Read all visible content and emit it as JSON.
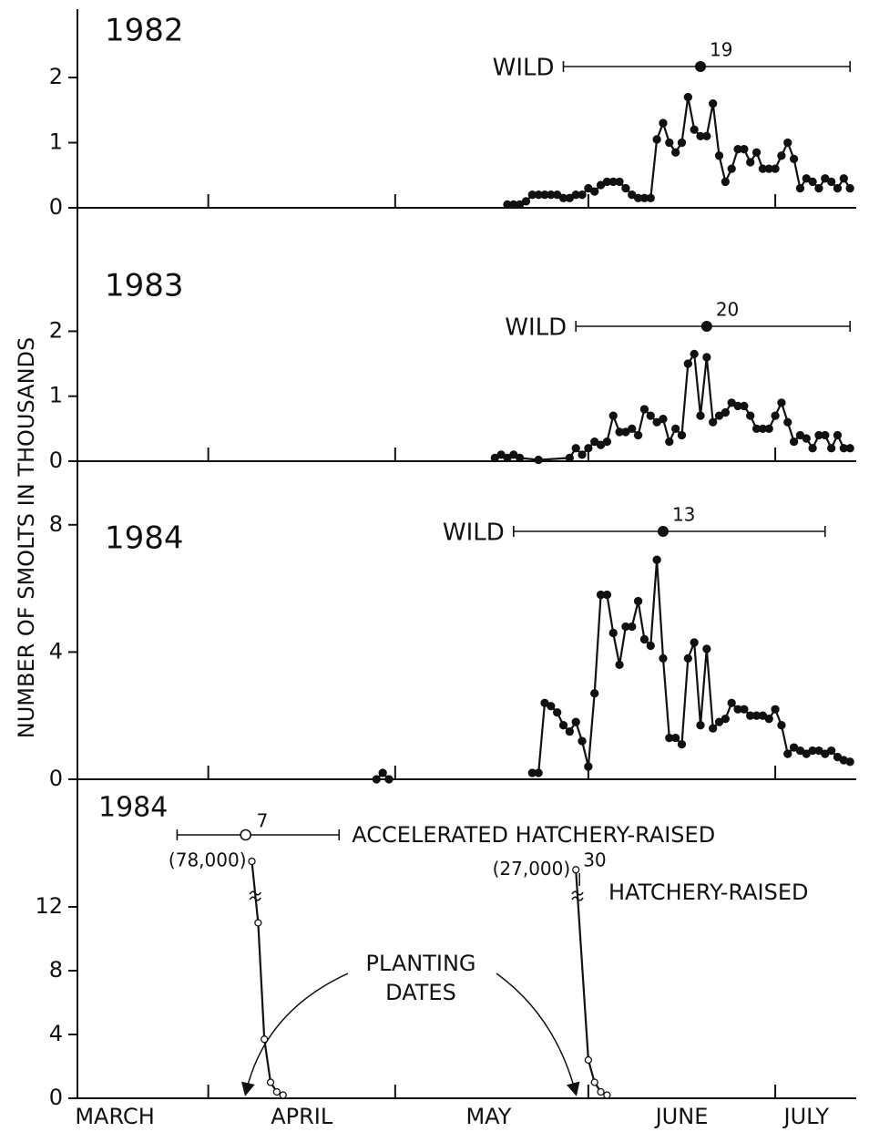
{
  "ylabel": "NUMBER OF SMOLTS IN THOUSANDS",
  "chart_data": [
    {
      "type": "line",
      "title": "1982",
      "xlim": [
        10,
        135
      ],
      "xticks": [
        31,
        61,
        92,
        122
      ],
      "ylim": [
        0,
        3.05
      ],
      "yticks": [
        0,
        1,
        2
      ],
      "series": [
        {
          "name": "WILD",
          "color": "#111111",
          "marker": "filled",
          "mean": 110,
          "range": [
            88,
            134
          ],
          "annotation": "19",
          "x": [
            79,
            80,
            81,
            82,
            83,
            84,
            85,
            86,
            87,
            88,
            89,
            90,
            91,
            92,
            93,
            94,
            95,
            96,
            97,
            98,
            99,
            100,
            101,
            102,
            103,
            104,
            105,
            106,
            107,
            108,
            109,
            110,
            111,
            112,
            113,
            114,
            115,
            116,
            117,
            118,
            119,
            120,
            121,
            122,
            123,
            124,
            125,
            126,
            127,
            128,
            129,
            130,
            131,
            132,
            133,
            134
          ],
          "values": [
            0.05,
            0.05,
            0.05,
            0.1,
            0.2,
            0.2,
            0.2,
            0.2,
            0.2,
            0.15,
            0.15,
            0.2,
            0.2,
            0.3,
            0.25,
            0.35,
            0.4,
            0.4,
            0.4,
            0.3,
            0.2,
            0.15,
            0.15,
            0.15,
            1.05,
            1.3,
            1.0,
            0.85,
            1.0,
            1.7,
            1.2,
            1.1,
            1.1,
            1.6,
            0.8,
            0.4,
            0.6,
            0.9,
            0.9,
            0.7,
            0.85,
            0.6,
            0.6,
            0.6,
            0.8,
            1.0,
            0.75,
            0.3,
            0.45,
            0.4,
            0.3,
            0.45,
            0.4,
            0.3,
            0.45,
            0.3
          ]
        }
      ]
    },
    {
      "type": "line",
      "title": "1983",
      "xlim": [
        10,
        135
      ],
      "xticks": [
        31,
        61,
        92,
        122
      ],
      "ylim": [
        0,
        3.9
      ],
      "yticks": [
        0,
        1,
        2
      ],
      "series": [
        {
          "name": "WILD",
          "color": "#111111",
          "marker": "filled",
          "mean": 111,
          "range": [
            90,
            134
          ],
          "annotation": "20",
          "x": [
            77,
            78,
            79,
            80,
            81,
            84,
            89,
            90,
            91,
            92,
            93,
            94,
            95,
            96,
            97,
            98,
            99,
            100,
            101,
            102,
            103,
            104,
            105,
            106,
            107,
            108,
            109,
            110,
            111,
            112,
            113,
            114,
            115,
            116,
            117,
            118,
            119,
            120,
            121,
            122,
            123,
            124,
            125,
            126,
            127,
            128,
            129,
            130,
            131,
            132,
            133,
            134
          ],
          "values": [
            0.05,
            0.1,
            0.05,
            0.1,
            0.05,
            0.02,
            0.05,
            0.2,
            0.1,
            0.2,
            0.3,
            0.25,
            0.3,
            0.7,
            0.45,
            0.45,
            0.5,
            0.4,
            0.8,
            0.7,
            0.6,
            0.65,
            0.3,
            0.5,
            0.4,
            1.5,
            1.65,
            0.7,
            1.6,
            0.6,
            0.7,
            0.75,
            0.9,
            0.85,
            0.85,
            0.7,
            0.5,
            0.5,
            0.5,
            0.7,
            0.9,
            0.6,
            0.3,
            0.4,
            0.35,
            0.2,
            0.4,
            0.4,
            0.2,
            0.4,
            0.2,
            0.2
          ]
        }
      ]
    },
    {
      "type": "line",
      "title": "1984",
      "xlim": [
        10,
        135
      ],
      "xticks": [
        31,
        61,
        92,
        122
      ],
      "ylim": [
        0,
        10
      ],
      "yticks": [
        0,
        4,
        8
      ],
      "series": [
        {
          "name": "WILD",
          "color": "#111111",
          "marker": "filled",
          "mean": 104,
          "range": [
            80,
            130
          ],
          "annotation": "13",
          "x": [
            58,
            59,
            60,
            61,
            83,
            84,
            85,
            86,
            87,
            88,
            89,
            90,
            91,
            92,
            93,
            94,
            95,
            96,
            97,
            98,
            99,
            100,
            101,
            102,
            103,
            104,
            105,
            106,
            107,
            108,
            109,
            110,
            111,
            112,
            113,
            114,
            115,
            116,
            117,
            118,
            119,
            120,
            121,
            122,
            123,
            124,
            125,
            126,
            127,
            128,
            129,
            130,
            131,
            132,
            133,
            134
          ],
          "values": [
            0,
            0.2,
            0,
            null,
            0.2,
            0.2,
            2.4,
            2.3,
            2.1,
            1.7,
            1.5,
            1.8,
            1.2,
            0.4,
            2.7,
            5.8,
            5.8,
            4.6,
            3.6,
            4.8,
            4.8,
            5.6,
            4.4,
            4.2,
            6.9,
            3.8,
            1.3,
            1.3,
            1.1,
            3.8,
            4.3,
            1.7,
            4.1,
            1.6,
            1.8,
            1.9,
            2.4,
            2.2,
            2.2,
            2.0,
            2.0,
            2.0,
            1.9,
            2.2,
            1.7,
            0.8,
            1.0,
            0.9,
            0.8,
            0.9,
            0.9,
            0.8,
            0.9,
            0.7,
            0.6,
            0.55
          ]
        }
      ]
    },
    {
      "type": "line",
      "title": "1984",
      "xlim": [
        10,
        135
      ],
      "xticks": [
        31,
        61,
        92,
        122
      ],
      "ylim": [
        0,
        20
      ],
      "yticks": [
        0,
        4,
        8,
        12
      ],
      "axis_break": 14,
      "x_labels": [
        {
          "value": 16,
          "label": "MARCH"
        },
        {
          "value": 46,
          "label": "APRIL"
        },
        {
          "value": 76,
          "label": "MAY"
        },
        {
          "value": 107,
          "label": "JUNE"
        },
        {
          "value": 127,
          "label": "JULY"
        }
      ],
      "planting_label": [
        "PLANTING",
        "DATES"
      ],
      "planting_dates": [
        37,
        90
      ],
      "series": [
        {
          "name": "ACCELERATED HATCHERY-RAISED",
          "color": "#111111",
          "marker": "open",
          "mean": 37,
          "range": [
            26,
            52
          ],
          "annotation": "7",
          "x": [
            38,
            39,
            40,
            41,
            42,
            43
          ],
          "values": [
            78,
            11,
            3.7,
            1.0,
            0.4,
            0.2
          ],
          "value_labels": [
            "(78,000)",
            null,
            null,
            null,
            null,
            null
          ]
        },
        {
          "name": "HATCHERY-RAISED",
          "color": "#111111",
          "marker": "open",
          "mean": 90,
          "annotation": "30",
          "x": [
            90,
            92,
            93,
            94,
            95
          ],
          "values": [
            27,
            2.4,
            1.0,
            0.4,
            0.2
          ],
          "value_labels": [
            "(27,000)",
            null,
            null,
            null,
            null
          ]
        }
      ]
    }
  ]
}
